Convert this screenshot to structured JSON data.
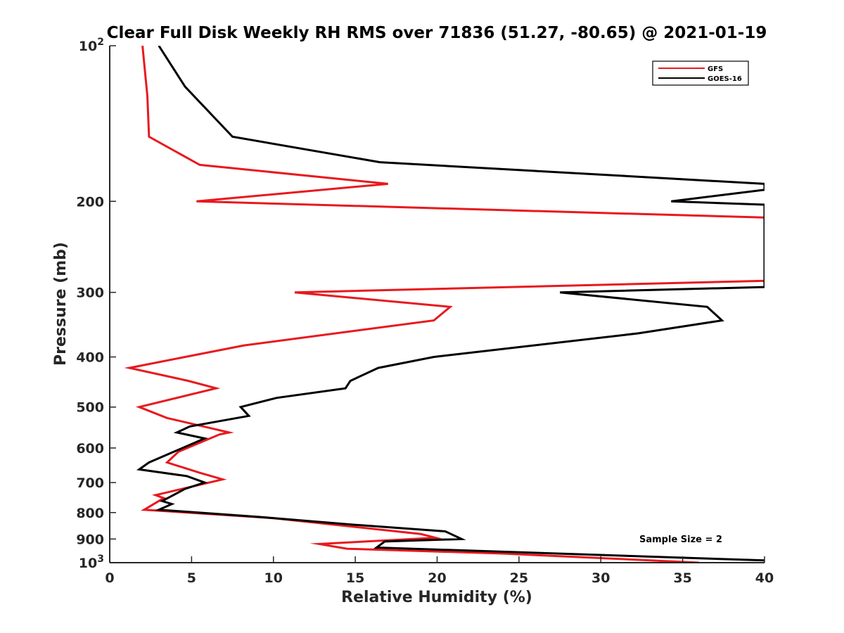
{
  "chart_data": {
    "type": "line",
    "title": "Clear Full Disk Weekly RH RMS over 71836 (51.27, -80.65) @ 2021-01-19",
    "xlabel": "Relative Humidity (%)",
    "ylabel": "Pressure (mb)",
    "xlim": [
      0,
      40
    ],
    "ylim": [
      100,
      1000
    ],
    "yscale": "log",
    "y_reversed": true,
    "x_ticks": [
      0,
      5,
      10,
      15,
      20,
      25,
      30,
      35,
      40
    ],
    "x_tick_labels": [
      "0",
      "5",
      "10",
      "15",
      "20",
      "25",
      "30",
      "35",
      "40"
    ],
    "y_ticks": [
      100,
      200,
      300,
      400,
      500,
      600,
      700,
      800,
      900,
      1000
    ],
    "y_tick_labels": [
      {
        "base": "10",
        "exp": "2"
      },
      {
        "base": "200",
        "exp": ""
      },
      {
        "base": "300",
        "exp": ""
      },
      {
        "base": "400",
        "exp": ""
      },
      {
        "base": "500",
        "exp": ""
      },
      {
        "base": "600",
        "exp": ""
      },
      {
        "base": "700",
        "exp": ""
      },
      {
        "base": "800",
        "exp": ""
      },
      {
        "base": "900",
        "exp": ""
      },
      {
        "base": "10",
        "exp": "3"
      }
    ],
    "legend_position": "top-right",
    "annotation": "Sample Size = 2",
    "series": [
      {
        "name": "GFS",
        "color": "#e8191e",
        "points": [
          [
            2.0,
            100
          ],
          [
            2.3,
            125
          ],
          [
            2.4,
            150
          ],
          [
            5.5,
            170
          ],
          [
            17.0,
            185
          ],
          [
            5.3,
            200
          ],
          [
            40.0,
            215
          ],
          [
            40.0,
            285
          ],
          [
            11.3,
            300
          ],
          [
            20.8,
            320
          ],
          [
            19.8,
            340
          ],
          [
            8.2,
            380
          ],
          [
            1.2,
            420
          ],
          [
            4.8,
            445
          ],
          [
            6.5,
            460
          ],
          [
            1.8,
            500
          ],
          [
            3.5,
            525
          ],
          [
            7.3,
            560
          ],
          [
            6.7,
            565
          ],
          [
            4.2,
            610
          ],
          [
            3.5,
            640
          ],
          [
            5.5,
            670
          ],
          [
            6.9,
            690
          ],
          [
            2.8,
            740
          ],
          [
            3.3,
            750
          ],
          [
            2.1,
            790
          ],
          [
            10.0,
            820
          ],
          [
            19.0,
            880
          ],
          [
            19.9,
            895
          ],
          [
            12.8,
            920
          ],
          [
            14.5,
            940
          ],
          [
            24.0,
            960
          ],
          [
            36.0,
            1000
          ]
        ]
      },
      {
        "name": "GOES-16",
        "color": "#000000",
        "points": [
          [
            3.0,
            100
          ],
          [
            4.6,
            120
          ],
          [
            7.5,
            150
          ],
          [
            16.5,
            168
          ],
          [
            40.0,
            185
          ],
          [
            40.0,
            190
          ],
          [
            34.3,
            200
          ],
          [
            40.0,
            203
          ],
          [
            40.0,
            293
          ],
          [
            27.5,
            300
          ],
          [
            36.5,
            320
          ],
          [
            37.4,
            340
          ],
          [
            32.3,
            360
          ],
          [
            19.8,
            400
          ],
          [
            16.4,
            420
          ],
          [
            14.7,
            445
          ],
          [
            14.4,
            460
          ],
          [
            10.2,
            480
          ],
          [
            8.0,
            500
          ],
          [
            8.5,
            520
          ],
          [
            4.9,
            545
          ],
          [
            4.1,
            560
          ],
          [
            5.8,
            575
          ],
          [
            2.4,
            640
          ],
          [
            1.8,
            660
          ],
          [
            4.7,
            680
          ],
          [
            5.8,
            700
          ],
          [
            4.6,
            720
          ],
          [
            3.2,
            760
          ],
          [
            3.8,
            770
          ],
          [
            3.0,
            790
          ],
          [
            9.0,
            815
          ],
          [
            15.0,
            845
          ],
          [
            20.5,
            870
          ],
          [
            21.5,
            900
          ],
          [
            16.8,
            910
          ],
          [
            16.3,
            935
          ],
          [
            40.0,
            990
          ]
        ]
      }
    ]
  }
}
